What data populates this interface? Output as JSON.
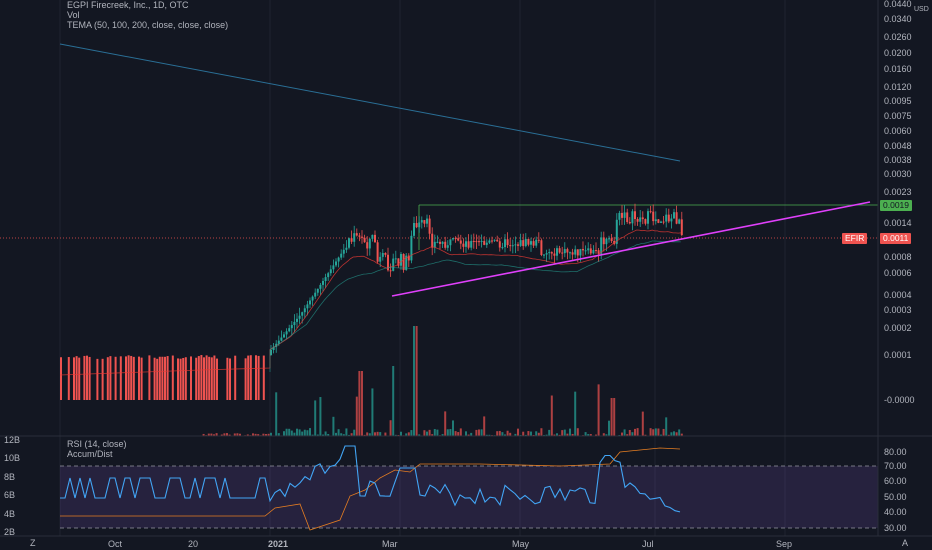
{
  "header": {
    "title": "EGPI Firecreek, Inc., 1D, OTC",
    "volume_label": "Vol",
    "tema_label": "TEMA (50, 100, 200, close, close, close)",
    "currency": "USD"
  },
  "rsi_panel": {
    "rsi_label": "RSI (14, close)",
    "accum_label": "Accum/Dist"
  },
  "price_tags": {
    "last_close": "0.0019",
    "symbol": "EFIR",
    "symbol_price": "0.0011"
  },
  "colors": {
    "background": "#131722",
    "up": "#26a69a",
    "down": "#ef5350",
    "trendline": "#e040fb",
    "rsi": "#42a5f5",
    "accum": "#e67e22",
    "rsi_band": "#7e57c2"
  },
  "chart_data": {
    "type": "candlestick",
    "price_axis_ticks": [
      "0.0440",
      "0.0340",
      "0.0260",
      "0.0200",
      "0.0160",
      "0.0120",
      "0.0095",
      "0.0075",
      "0.0060",
      "0.0048",
      "0.0038",
      "0.0030",
      "0.0023",
      "0.0014",
      "0.0008",
      "0.0006",
      "0.0004",
      "0.0003",
      "0.0002",
      "0.0001",
      "-0.0000"
    ],
    "time_axis_ticks": [
      "Oct",
      "20",
      "2021",
      "Mar",
      "May",
      "Jul",
      "Sep"
    ],
    "volume_axis_ticks": [
      "12B",
      "10B",
      "8B",
      "6B",
      "4B",
      "2B"
    ],
    "rsi_axis_ticks": [
      "80.00",
      "70.00",
      "60.00",
      "50.00",
      "40.00",
      "30.00"
    ],
    "rsi_bands": [
      30,
      70
    ],
    "last_price": 0.0011,
    "resistance_price": 0.0019,
    "corner_labels": [
      "Z",
      "A"
    ]
  }
}
